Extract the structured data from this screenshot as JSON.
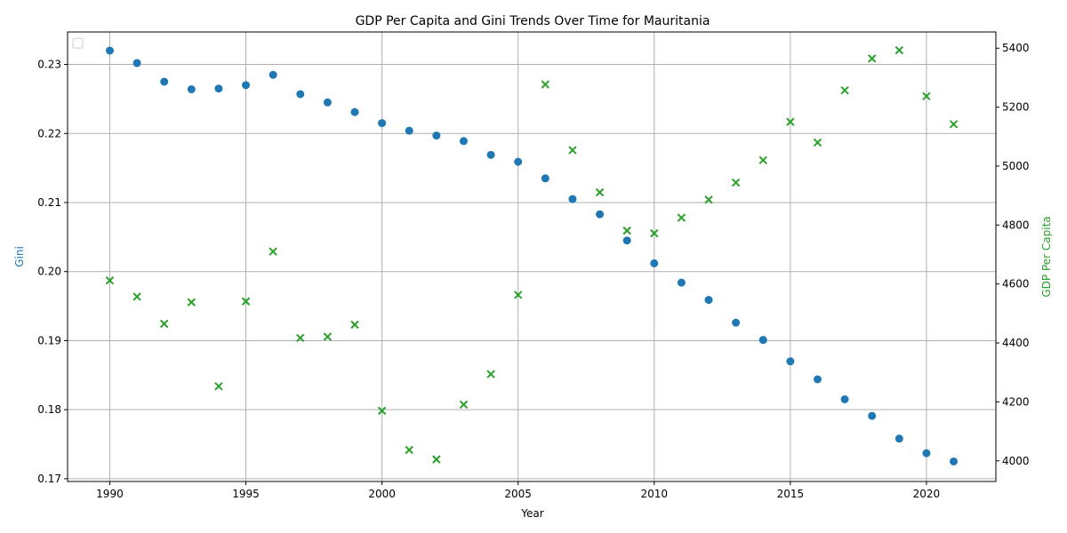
{
  "chart_data": {
    "type": "scatter",
    "title": "GDP Per Capita and Gini Trends Over Time for Mauritania",
    "xlabel": "Year",
    "ylabel_left": "Gini",
    "ylabel_right": "GDP Per Capita",
    "xlim": [
      1988.45,
      2022.55
    ],
    "ylim_left": [
      0.1696,
      0.2347
    ],
    "ylim_right": [
      3930,
      5455
    ],
    "x_ticks": [
      1990,
      1995,
      2000,
      2005,
      2010,
      2015,
      2020
    ],
    "y_ticks_left": [
      0.17,
      0.18,
      0.19,
      0.2,
      0.21,
      0.22,
      0.23
    ],
    "y_ticks_left_labels": [
      "0.17",
      "0.18",
      "0.19",
      "0.20",
      "0.21",
      "0.22",
      "0.23"
    ],
    "y_ticks_right": [
      4000,
      4200,
      4400,
      4600,
      4800,
      5000,
      5200,
      5400
    ],
    "grid": true,
    "legend": "upper-left",
    "colors": {
      "gini": "#1f77b4",
      "gdp": "#2ca02c"
    },
    "x": [
      1990,
      1991,
      1992,
      1993,
      1994,
      1995,
      1996,
      1997,
      1998,
      1999,
      2000,
      2001,
      2002,
      2003,
      2004,
      2005,
      2006,
      2007,
      2008,
      2009,
      2010,
      2011,
      2012,
      2013,
      2014,
      2015,
      2016,
      2017,
      2018,
      2019,
      2020,
      2021
    ],
    "series": [
      {
        "axis": "left",
        "marker": "circle",
        "values": [
          0.232,
          0.2302,
          0.2275,
          0.2264,
          0.2265,
          0.227,
          0.2285,
          0.2257,
          0.2245,
          0.2231,
          0.2215,
          0.2204,
          0.2197,
          0.2189,
          0.2169,
          0.2159,
          0.2135,
          0.2105,
          0.2083,
          0.2045,
          0.2012,
          0.1984,
          0.1959,
          0.1926,
          0.1901,
          0.187,
          0.1844,
          0.1815,
          0.1791,
          0.1758,
          0.1737,
          0.1725
        ]
      },
      {
        "axis": "right",
        "marker": "x",
        "values": [
          4612,
          4557,
          4465,
          4538,
          4253,
          4541,
          4710,
          4417,
          4421,
          4462,
          4170,
          4037,
          4005,
          4191,
          4294,
          4563,
          5277,
          5054,
          4911,
          4781,
          4772,
          4825,
          4886,
          4944,
          5020,
          5150,
          5080,
          5257,
          5365,
          5393,
          5237,
          5142
        ]
      }
    ]
  }
}
